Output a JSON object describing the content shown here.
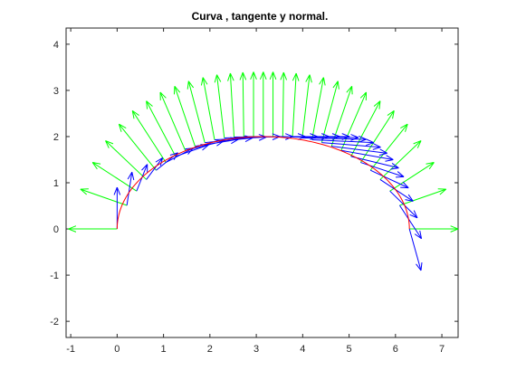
{
  "chart_data": {
    "type": "line",
    "title": "Curva , tangente y normal.",
    "xlabel": "",
    "ylabel": "",
    "xlim": [
      -1.1,
      7.35
    ],
    "ylim": [
      -2.35,
      4.35
    ],
    "xticks": [
      -1,
      0,
      1,
      2,
      3,
      4,
      5,
      6,
      7
    ],
    "yticks": [
      -2,
      -1,
      0,
      1,
      2,
      3,
      4
    ],
    "grid": false,
    "legend": "none",
    "colors": {
      "curve": "#ff0000",
      "tangent": "#0000ff",
      "normal": "#00ff00"
    },
    "curve": {
      "description_points": "semicircle-like arc: x = 3.15 + 3.15*cos(t), y = 2*sin(t)",
      "x": [
        0.0,
        0.08,
        0.31,
        0.69,
        1.2,
        1.8,
        2.45,
        3.15,
        3.85,
        4.5,
        5.1,
        5.61,
        5.99,
        6.22,
        6.3
      ],
      "y": [
        0.0,
        0.45,
        0.87,
        1.25,
        1.56,
        1.8,
        1.95,
        2.0,
        1.95,
        1.8,
        1.56,
        1.25,
        0.87,
        0.45,
        0.0
      ]
    },
    "series": [
      {
        "type": "quiver",
        "x": [
          0.0,
          0.21,
          0.42,
          0.63,
          0.84,
          1.05,
          1.26,
          1.47,
          1.68,
          1.89,
          2.1,
          2.31,
          2.52,
          2.73,
          2.94,
          3.15,
          3.36,
          3.57,
          3.78,
          3.99,
          4.2,
          4.41,
          4.62,
          4.83,
          5.04,
          5.25,
          5.46,
          5.67,
          5.88,
          6.09,
          6.3
        ],
        "y": [
          0.0,
          0.51,
          0.82,
          1.07,
          1.27,
          1.44,
          1.57,
          1.7,
          1.79,
          1.87,
          1.93,
          1.97,
          1.99,
          2.0,
          2.0,
          2.0,
          2.0,
          2.0,
          1.99,
          1.97,
          1.93,
          1.87,
          1.79,
          1.7,
          1.57,
          1.44,
          1.27,
          1.07,
          0.82,
          0.51,
          0.0
        ],
        "dx": [
          0.0,
          0.11,
          0.23,
          0.35,
          0.47,
          0.59,
          0.71,
          0.82,
          0.93,
          1.03,
          1.12,
          1.2,
          1.27,
          1.33,
          1.38,
          1.42,
          1.44,
          1.44,
          1.42,
          1.38,
          1.33,
          1.27,
          1.2,
          1.12,
          1.03,
          0.93,
          0.82,
          0.71,
          0.59,
          0.47,
          0.25
        ],
        "dy": [
          0.9,
          0.72,
          0.58,
          0.47,
          0.38,
          0.31,
          0.25,
          0.2,
          0.15,
          0.1,
          0.06,
          0.03,
          0.01,
          0.0,
          0.0,
          0.0,
          0.0,
          0.0,
          -0.01,
          -0.03,
          -0.06,
          -0.1,
          -0.15,
          -0.2,
          -0.25,
          -0.31,
          -0.38,
          -0.47,
          -0.58,
          -0.72,
          -0.9
        ]
      },
      {
        "type": "quiver",
        "dnx": [
          -1.05,
          -1.0,
          -0.95,
          -0.88,
          -0.8,
          -0.72,
          -0.63,
          -0.54,
          -0.44,
          -0.35,
          -0.25,
          -0.16,
          -0.08,
          -0.02,
          0.0,
          0.0,
          0.0,
          0.02,
          0.08,
          0.16,
          0.25,
          0.35,
          0.44,
          0.54,
          0.63,
          0.72,
          0.8,
          0.88,
          0.95,
          1.0,
          1.05
        ],
        "dny": [
          0.0,
          0.35,
          0.62,
          0.84,
          1.0,
          1.12,
          1.2,
          1.26,
          1.3,
          1.33,
          1.35,
          1.37,
          1.38,
          1.39,
          1.4,
          1.4,
          1.4,
          1.39,
          1.38,
          1.37,
          1.35,
          1.33,
          1.3,
          1.26,
          1.2,
          1.12,
          1.0,
          0.84,
          0.62,
          0.35,
          0.0
        ]
      }
    ]
  }
}
